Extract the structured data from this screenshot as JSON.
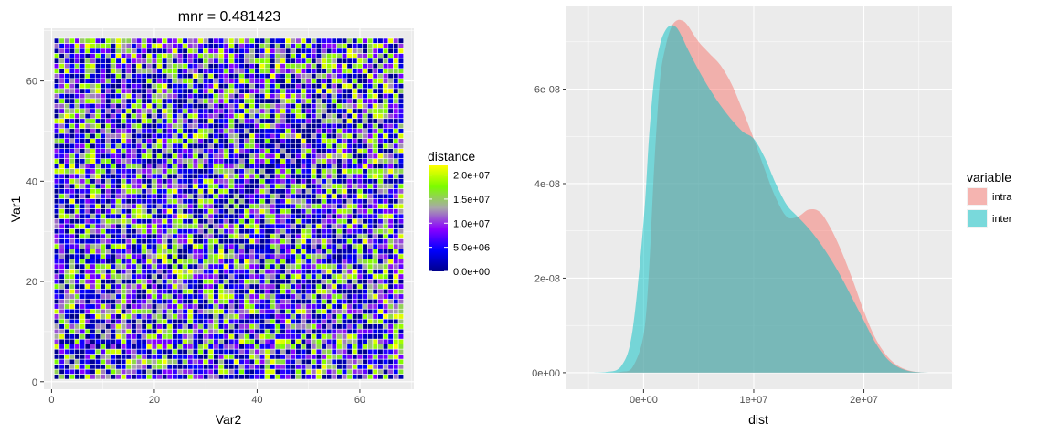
{
  "chart_data": [
    {
      "type": "heatmap",
      "title": "mnr = 0.481423",
      "xlabel": "Var2",
      "ylabel": "Var1",
      "x_range": [
        1,
        68
      ],
      "y_range": [
        1,
        68
      ],
      "xlim": [
        -1.5,
        70.5
      ],
      "ylim": [
        -1.5,
        70.5
      ],
      "x_ticks": [
        0,
        20,
        40,
        60
      ],
      "x_tick_labels": [
        "0",
        "20",
        "40",
        "60"
      ],
      "y_ticks": [
        0,
        20,
        40,
        60
      ],
      "y_tick_labels": [
        "0",
        "20",
        "40",
        "60"
      ],
      "legend": {
        "title": "distance",
        "placement": "right",
        "range": [
          0,
          22000000
        ],
        "breaks": [
          0,
          5000000,
          10000000,
          15000000,
          20000000
        ],
        "break_labels": [
          "0.0e+00",
          "5.0e+06",
          "1.0e+07",
          "1.5e+07",
          "2.0e+07"
        ],
        "gradient": [
          "#00008B",
          "#0000FF",
          "#8B00FF",
          "#A8A8A8",
          "#7CFC00",
          "#FFFF00"
        ]
      },
      "grid": true,
      "background": "#EBEBEB"
    },
    {
      "type": "area",
      "subtype": "density",
      "xlabel": "dist",
      "ylabel": "",
      "xlim": [
        -7000000,
        28000000
      ],
      "ylim": [
        -3.5e-09,
        7.75e-08
      ],
      "x_ticks": [
        0,
        10000000,
        20000000
      ],
      "x_tick_labels": [
        "0e+00",
        "1e+07",
        "2e+07"
      ],
      "y_ticks": [
        0,
        2e-08,
        4e-08,
        6e-08
      ],
      "y_tick_labels": [
        "0e+00",
        "2e-08",
        "4e-08",
        "6e-08"
      ],
      "legend": {
        "title": "variable",
        "placement": "right",
        "entries": [
          "intra",
          "inter"
        ]
      },
      "series": [
        {
          "name": "intra",
          "color": "#F8766D",
          "x": [
            -5000000,
            -3500000,
            -2000000,
            -1000000,
            0,
            500000,
            1000000,
            1500000,
            2000000,
            2500000,
            3000000,
            3500000,
            4000000,
            5000000,
            6000000,
            7000000,
            8000000,
            9000000,
            10000000,
            11000000,
            12000000,
            13000000,
            14000000,
            15000000,
            16000000,
            17000000,
            18000000,
            19000000,
            20000000,
            21000000,
            22000000,
            23000000,
            24000000,
            25000000,
            26000000
          ],
          "values": [
            0,
            0.0,
            2e-10,
            1.2e-09,
            8e-09,
            2.2e-08,
            4.5e-08,
            6.2e-08,
            6.9e-08,
            7.3e-08,
            7.45e-08,
            7.45e-08,
            7.35e-08,
            7e-08,
            6.75e-08,
            6.5e-08,
            6.1e-08,
            5.55e-08,
            4.95e-08,
            4.3e-08,
            3.7e-08,
            3.3e-08,
            3.3e-08,
            3.45e-08,
            3.4e-08,
            3.05e-08,
            2.55e-08,
            1.95e-08,
            1.3e-08,
            7.5e-09,
            3.8e-09,
            1.6e-09,
            5e-10,
            1e-10,
            0
          ]
        },
        {
          "name": "inter",
          "color": "#00BFC4",
          "x": [
            -5000000,
            -3500000,
            -2000000,
            -1000000,
            0,
            500000,
            1000000,
            1500000,
            2000000,
            2500000,
            3000000,
            3500000,
            4000000,
            5000000,
            6000000,
            7000000,
            8000000,
            9000000,
            10000000,
            11000000,
            12000000,
            13000000,
            14000000,
            15000000,
            16000000,
            17000000,
            18000000,
            19000000,
            20000000,
            21000000,
            22000000,
            23000000,
            24000000,
            25000000,
            26000000
          ],
          "values": [
            0,
            1e-10,
            1.5e-09,
            9e-09,
            3.2e-08,
            5e-08,
            6.3e-08,
            6.95e-08,
            7.25e-08,
            7.35e-08,
            7.3e-08,
            7.1e-08,
            6.85e-08,
            6.4e-08,
            6e-08,
            5.65e-08,
            5.35e-08,
            5.1e-08,
            4.95e-08,
            4.55e-08,
            4e-08,
            3.55e-08,
            3.3e-08,
            3.05e-08,
            2.75e-08,
            2.4e-08,
            2e-08,
            1.55e-08,
            1.1e-08,
            6.5e-09,
            3.2e-09,
            1.3e-09,
            4e-10,
            1e-10,
            0
          ]
        }
      ],
      "grid": true,
      "background": "#EBEBEB"
    }
  ]
}
